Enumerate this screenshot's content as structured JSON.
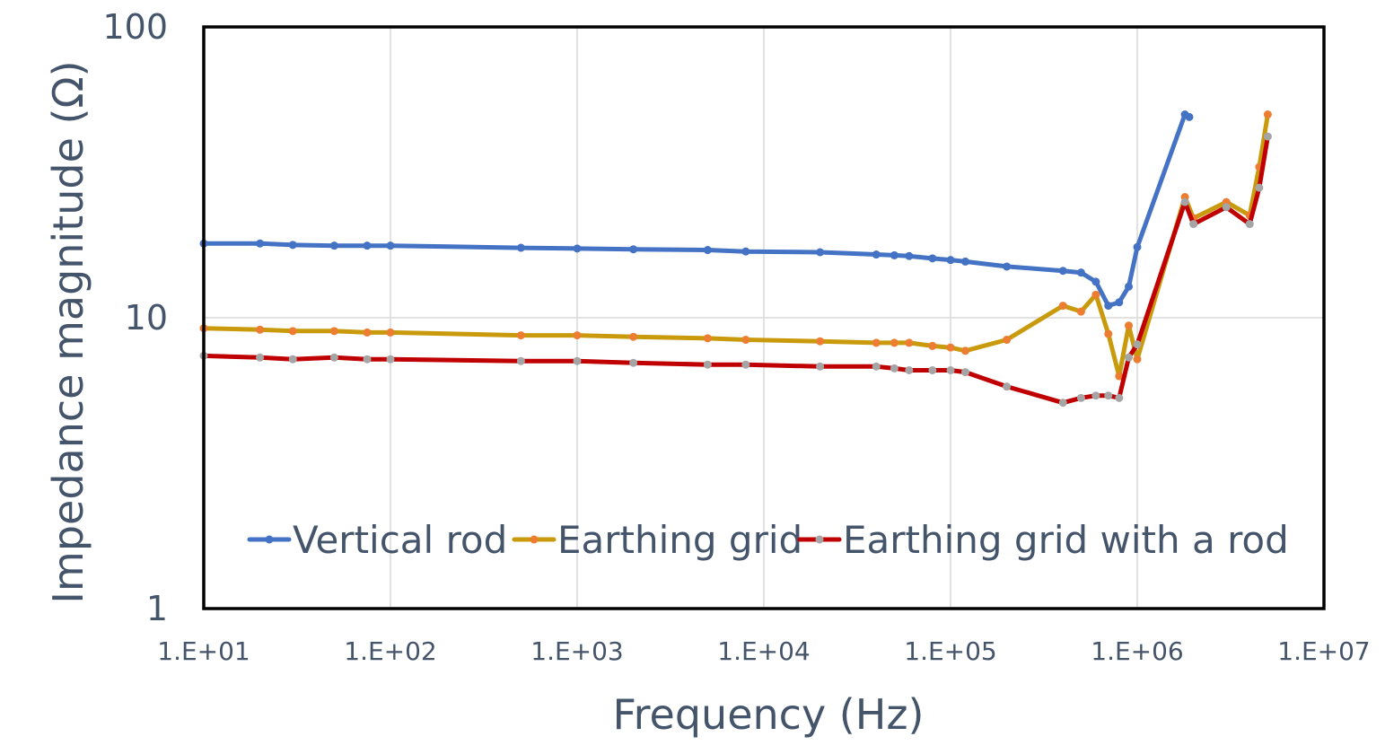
{
  "chart_data": {
    "type": "line",
    "title": "",
    "xlabel": "Frequency (Hz)",
    "ylabel": "Impedance magnitude (Ω)",
    "x_scale": "log",
    "y_scale": "log",
    "xlim": [
      10,
      10000000
    ],
    "ylim": [
      1,
      100
    ],
    "x_tick_labels": [
      "1.E+01",
      "1.E+02",
      "1.E+03",
      "1.E+04",
      "1.E+05",
      "1.E+06",
      "1.E+07"
    ],
    "y_tick_labels": [
      "1",
      "10",
      "100"
    ],
    "grid": true,
    "legend_position": "bottom-inside",
    "series": [
      {
        "name": "Vertical rod",
        "color": "#4472c4",
        "marker_color": "#4472c4",
        "points": [
          [
            10,
            18.0
          ],
          [
            20,
            18.0
          ],
          [
            30,
            17.8
          ],
          [
            50,
            17.7
          ],
          [
            75,
            17.7
          ],
          [
            100,
            17.7
          ],
          [
            500,
            17.4
          ],
          [
            1000,
            17.3
          ],
          [
            2000,
            17.2
          ],
          [
            5000,
            17.1
          ],
          [
            8000,
            16.9
          ],
          [
            20000,
            16.8
          ],
          [
            40000,
            16.5
          ],
          [
            50000,
            16.4
          ],
          [
            60000,
            16.3
          ],
          [
            80000,
            16.0
          ],
          [
            100000,
            15.8
          ],
          [
            120000,
            15.6
          ],
          [
            200000,
            15.0
          ],
          [
            400000,
            14.5
          ],
          [
            500000,
            14.3
          ],
          [
            600000,
            13.3
          ],
          [
            700000,
            11.0
          ],
          [
            800000,
            11.3
          ],
          [
            900000,
            12.8
          ],
          [
            1000000,
            17.5
          ],
          [
            1800000,
            50.0
          ],
          [
            1900000,
            49.0
          ]
        ]
      },
      {
        "name": "Earthing grid",
        "color": "#c89a0c",
        "marker_color": "#ed7d31",
        "points": [
          [
            10,
            9.2
          ],
          [
            20,
            9.1
          ],
          [
            30,
            9.0
          ],
          [
            50,
            9.0
          ],
          [
            75,
            8.9
          ],
          [
            100,
            8.9
          ],
          [
            500,
            8.7
          ],
          [
            1000,
            8.7
          ],
          [
            2000,
            8.6
          ],
          [
            5000,
            8.5
          ],
          [
            8000,
            8.4
          ],
          [
            20000,
            8.3
          ],
          [
            40000,
            8.2
          ],
          [
            50000,
            8.2
          ],
          [
            60000,
            8.2
          ],
          [
            80000,
            8.0
          ],
          [
            100000,
            7.9
          ],
          [
            120000,
            7.7
          ],
          [
            200000,
            8.4
          ],
          [
            400000,
            11.0
          ],
          [
            500000,
            10.5
          ],
          [
            600000,
            12.0
          ],
          [
            700000,
            8.8
          ],
          [
            800000,
            6.3
          ],
          [
            900000,
            9.4
          ],
          [
            1000000,
            7.2
          ],
          [
            1800000,
            26.0
          ],
          [
            2000000,
            22.0
          ],
          [
            3000000,
            25.0
          ],
          [
            4000000,
            22.5
          ],
          [
            4500000,
            33.0
          ],
          [
            5000000,
            50.0
          ]
        ]
      },
      {
        "name": "Earthing grid with a rod",
        "color": "#c00000",
        "marker_color": "#a5a5a5",
        "points": [
          [
            10,
            7.4
          ],
          [
            20,
            7.3
          ],
          [
            30,
            7.2
          ],
          [
            50,
            7.3
          ],
          [
            75,
            7.2
          ],
          [
            100,
            7.2
          ],
          [
            500,
            7.1
          ],
          [
            1000,
            7.1
          ],
          [
            2000,
            7.0
          ],
          [
            5000,
            6.9
          ],
          [
            8000,
            6.9
          ],
          [
            20000,
            6.8
          ],
          [
            40000,
            6.8
          ],
          [
            50000,
            6.7
          ],
          [
            60000,
            6.6
          ],
          [
            80000,
            6.6
          ],
          [
            100000,
            6.6
          ],
          [
            120000,
            6.5
          ],
          [
            200000,
            5.8
          ],
          [
            400000,
            5.1
          ],
          [
            500000,
            5.3
          ],
          [
            600000,
            5.4
          ],
          [
            700000,
            5.4
          ],
          [
            800000,
            5.3
          ],
          [
            900000,
            7.3
          ],
          [
            1000000,
            8.1
          ],
          [
            1800000,
            25.0
          ],
          [
            2000000,
            21.0
          ],
          [
            3000000,
            24.0
          ],
          [
            4000000,
            21.0
          ],
          [
            4500000,
            28.0
          ],
          [
            5000000,
            42.0
          ]
        ]
      }
    ]
  }
}
